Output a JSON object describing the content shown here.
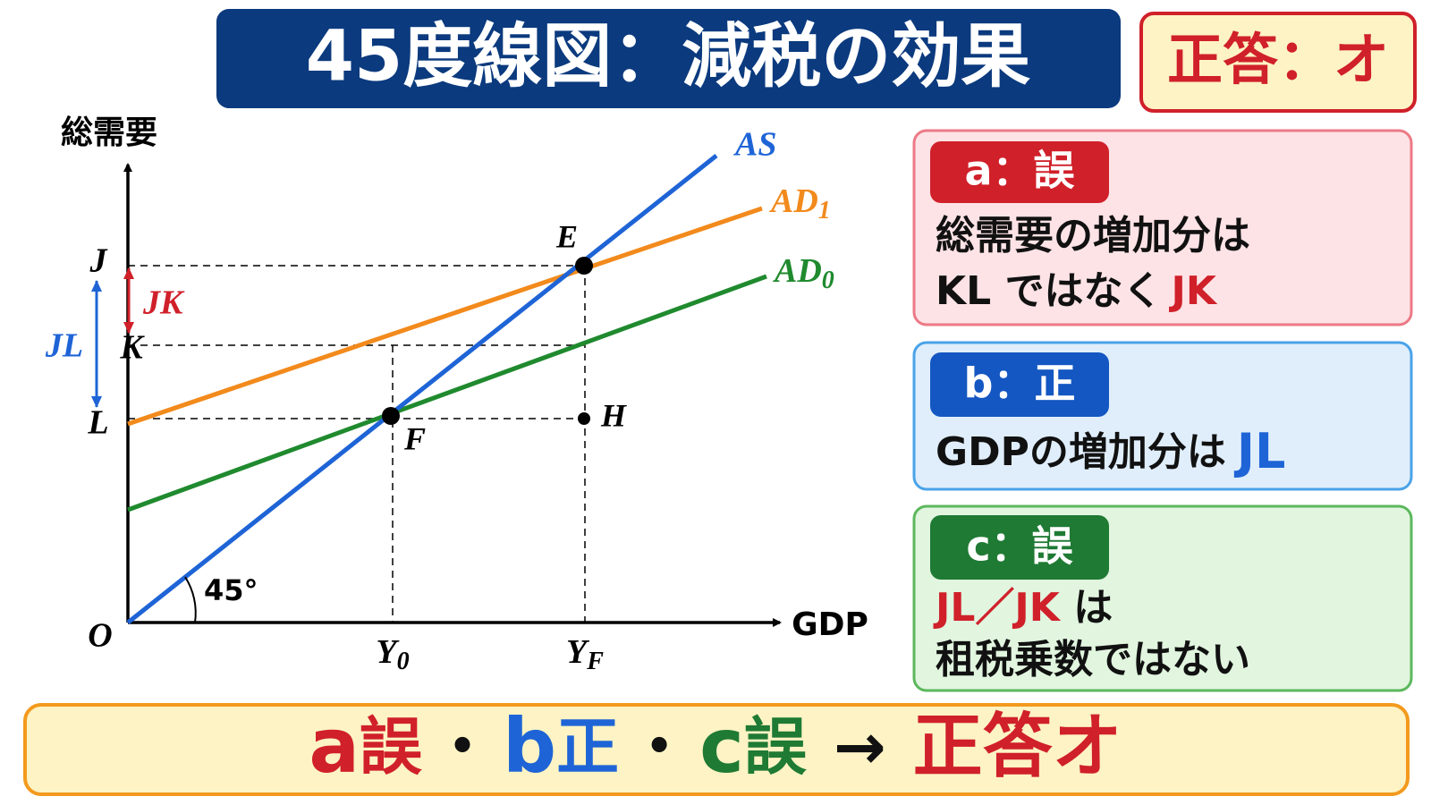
{
  "header": {
    "title": "45度線図：減税の効果",
    "answer": "正答：オ"
  },
  "diagram": {
    "y_axis_label": "総需要",
    "x_axis_label": "GDP",
    "origin": "O",
    "angle": "45°",
    "lines": {
      "as": {
        "label": "AS"
      },
      "ad1": {
        "label": "AD",
        "sub": "1"
      },
      "ad0": {
        "label": "AD",
        "sub": "0"
      }
    },
    "points": {
      "e": "E",
      "f": "F",
      "h": "H"
    },
    "levels": {
      "j": "J",
      "k": "K",
      "l": "L"
    },
    "x_marks": {
      "y0": {
        "label": "Y",
        "sub": "0"
      },
      "yf": {
        "label": "Y",
        "sub": "F"
      }
    },
    "brackets": {
      "jk": "JK",
      "jl": "JL"
    }
  },
  "cards": [
    {
      "badge": "a：誤",
      "lines": [
        [
          "総需要の増加分は"
        ],
        [
          "KL ではなく",
          "JK"
        ]
      ]
    },
    {
      "badge": "b：正",
      "lines": [
        [
          "GDPの増加分は",
          "JL"
        ]
      ]
    },
    {
      "badge": "c：誤",
      "lines": [
        [
          "JL／JK",
          " は"
        ],
        [
          "租税乗数ではない"
        ]
      ]
    }
  ],
  "summary": {
    "parts": [
      "a",
      "誤",
      "・",
      "b",
      "正",
      "・",
      "c",
      "誤",
      "→",
      "正答オ"
    ]
  }
}
